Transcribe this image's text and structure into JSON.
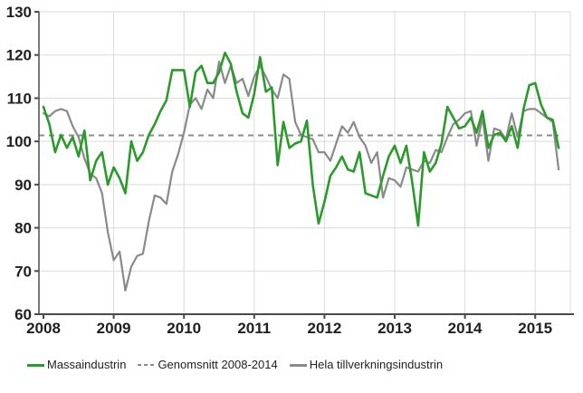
{
  "chart_data": {
    "type": "line",
    "title": "",
    "x_unit": "month",
    "x_range_label": "Jan 2008 - May 2015",
    "x_tick_labels": [
      "2008",
      "2009",
      "2010",
      "2011",
      "2012",
      "2013",
      "2014",
      "2015"
    ],
    "y_ticks": [
      60,
      70,
      80,
      90,
      100,
      110,
      120,
      130
    ],
    "ylim": [
      60,
      130
    ],
    "grid": true,
    "legend_position": "bottom",
    "average_line": {
      "label": "Genomsnitt 2008-2014",
      "value": 101.4,
      "style": "dashed",
      "color": "#8c8c8c"
    },
    "series": [
      {
        "name": "Massaindustrin",
        "color": "#2a9b2a",
        "style": "solid",
        "values": [
          108,
          104,
          97.5,
          101.5,
          98.5,
          101,
          96.5,
          102.5,
          91,
          95.5,
          97.5,
          90,
          94,
          91.5,
          88,
          100,
          95.5,
          97.5,
          101.5,
          104,
          107,
          109.5,
          116.5,
          116.5,
          116.5,
          108,
          116,
          117.5,
          113.5,
          113.5,
          116,
          120.5,
          118,
          111.5,
          106.5,
          105.5,
          111,
          119.5,
          111.5,
          112.5,
          94.5,
          104.5,
          98.5,
          99.5,
          100,
          104.8,
          90,
          81,
          86,
          92,
          94,
          96.5,
          93.5,
          93,
          97.5,
          88,
          87.5,
          87,
          92,
          96.5,
          99,
          95,
          99,
          90.5,
          80.5,
          97.5,
          93,
          95,
          99.5,
          108,
          105.5,
          103,
          103.5,
          105.5,
          102,
          107,
          98.5,
          101.5,
          102,
          100,
          103.5,
          98.5,
          107.5,
          113,
          113.5,
          108.5,
          105.5,
          105,
          98.5
        ]
      },
      {
        "name": "Hela tillverkningsindustrin",
        "color": "#8a8a8a",
        "style": "solid",
        "values": [
          106.5,
          105.8,
          107,
          107.5,
          107,
          103.5,
          101,
          96,
          92.5,
          91.5,
          88,
          79,
          72.5,
          74.5,
          65.5,
          71,
          73.5,
          74,
          81.5,
          87.5,
          87,
          85.5,
          93,
          97,
          102,
          108.5,
          110,
          107.5,
          112,
          110,
          118.5,
          113.5,
          117.5,
          113.5,
          114.5,
          110.5,
          115,
          117.5,
          115,
          112,
          110,
          115.5,
          114.5,
          104.5,
          101.5,
          101,
          100.5,
          97.5,
          97.5,
          95.5,
          99.5,
          103.5,
          102,
          104.5,
          101,
          99,
          95,
          97.5,
          87,
          91.5,
          91,
          89.5,
          94,
          93.5,
          93,
          95.5,
          95,
          98,
          97.5,
          101,
          104,
          105,
          106.5,
          107,
          99,
          105.5,
          95.5,
          103,
          102.5,
          100.5,
          106.5,
          101,
          107,
          107.5,
          107.5,
          106.5,
          105.5,
          104.5,
          93.5
        ]
      }
    ]
  },
  "legend": {
    "items": [
      {
        "label": "Massaindustrin",
        "swatch": "solid-green"
      },
      {
        "label": "Genomsnitt 2008-2014",
        "swatch": "dashed-gray"
      },
      {
        "label": "Hela tillverkningsindustrin",
        "swatch": "solid-gray"
      }
    ]
  },
  "colors": {
    "massa": "#2a9b2a",
    "hela": "#8a8a8a",
    "average": "#8c8c8c",
    "grid": "#dadada",
    "axis": "#4a4a4a",
    "text": "#1f1f1f"
  }
}
